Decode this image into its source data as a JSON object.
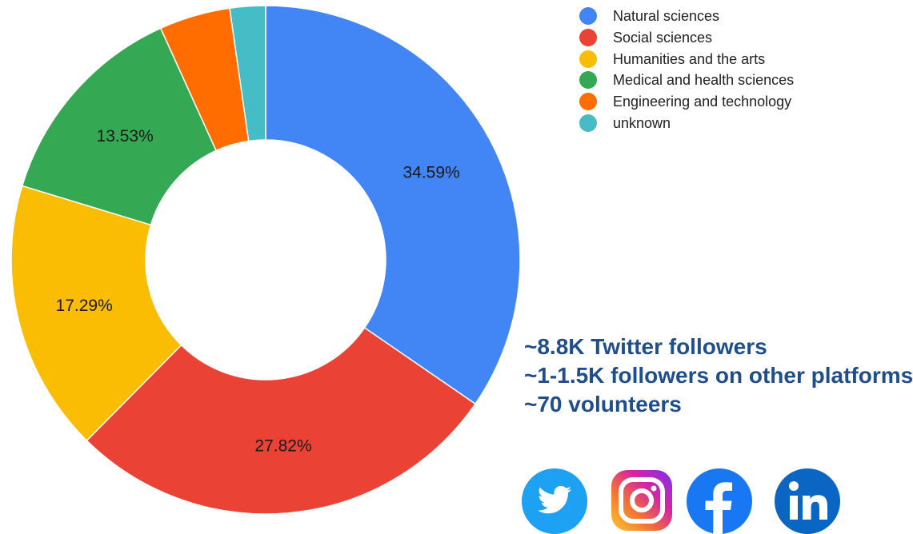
{
  "chart_data": {
    "type": "pie",
    "donut": true,
    "categories": [
      "Natural sciences",
      "Social sciences",
      "Humanities and the arts",
      "Medical and health sciences",
      "Engineering and technology",
      "unknown"
    ],
    "values": [
      34.59,
      27.82,
      17.29,
      13.53,
      4.51,
      2.26
    ],
    "data_labels": [
      "34.59%",
      "27.82%",
      "17.29%",
      "13.53%",
      "",
      ""
    ],
    "colors": [
      "#4285F4",
      "#EA4335",
      "#FBBC04",
      "#34A853",
      "#FF6D01",
      "#46BDC6"
    ],
    "legend_position": "right"
  },
  "stats": [
    "~8.8K Twitter followers",
    "~1-1.5K followers on other platforms",
    "~70 volunteers"
  ],
  "social_icons": [
    "twitter-icon",
    "instagram-icon",
    "facebook-icon",
    "linkedin-icon"
  ]
}
